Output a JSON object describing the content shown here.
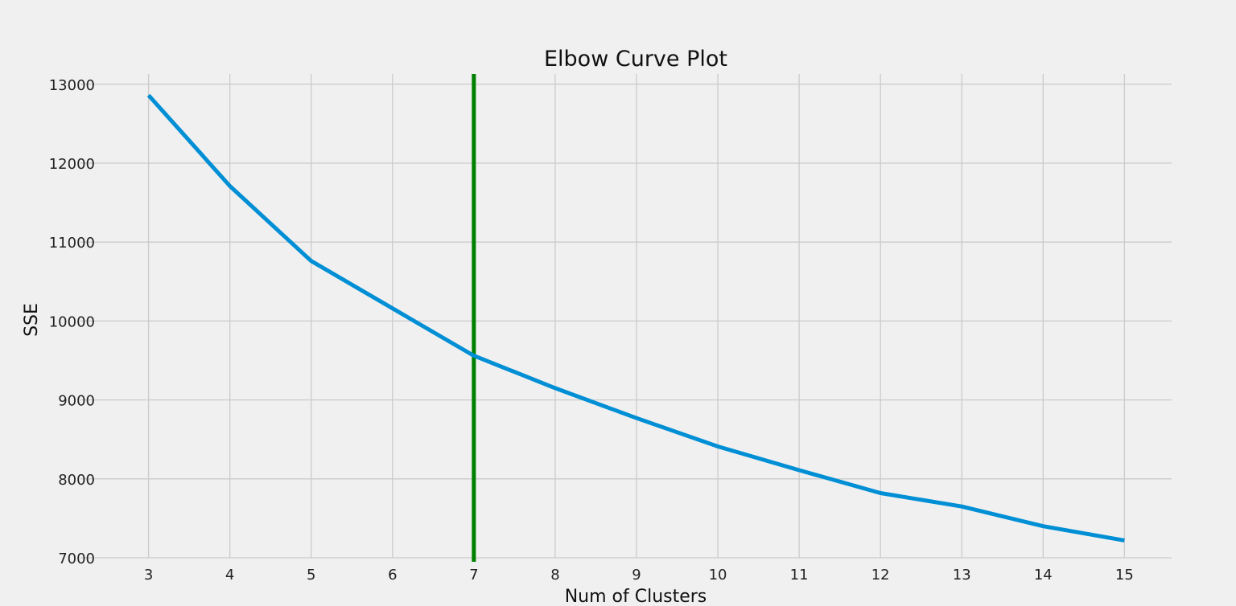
{
  "chart_data": {
    "type": "line",
    "title": "Elbow Curve Plot",
    "xlabel": "Num of Clusters",
    "ylabel": "SSE",
    "x": [
      3,
      4,
      5,
      6,
      7,
      8,
      9,
      10,
      11,
      12,
      13,
      14,
      15
    ],
    "series": [
      {
        "values": [
          12860,
          11710,
          10760,
          10160,
          9560,
          9150,
          8770,
          8410,
          8110,
          7820,
          7650,
          7400,
          7220
        ],
        "color": "#008fd5"
      }
    ],
    "vertical_line": {
      "x": 7,
      "color": "#008000"
    },
    "xticks": [
      3,
      4,
      5,
      6,
      7,
      8,
      9,
      10,
      11,
      12,
      13,
      14,
      15
    ],
    "yticks": [
      7000,
      8000,
      9000,
      10000,
      11000,
      12000,
      13000
    ],
    "xlim": [
      2.44,
      15.58
    ],
    "ylim": [
      7000,
      13130
    ],
    "grid": true,
    "background": "#f0f0f0",
    "grid_color": "#cbcbcb"
  }
}
